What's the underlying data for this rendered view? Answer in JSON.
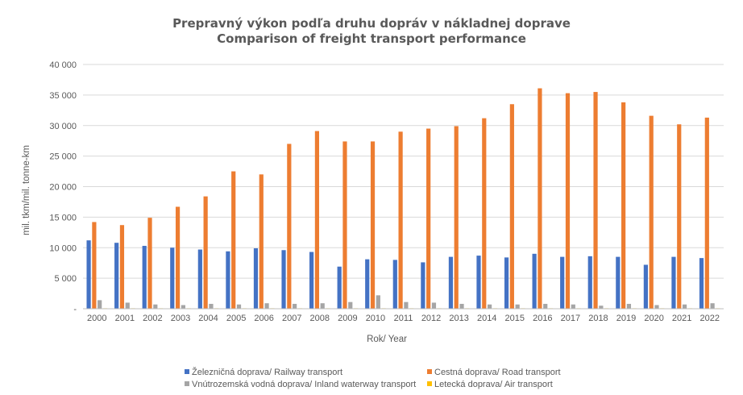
{
  "chart_data": {
    "type": "bar",
    "title": "Prepravný výkon podľa druhu dopráv v nákladnej doprave",
    "subtitle": "Comparison of freight transport performance",
    "xlabel": "Rok/ Year",
    "ylabel": "mil. tkm/mil. tonne-km",
    "ylim": [
      0,
      40000
    ],
    "yticks": [
      {
        "value": 0,
        "label": "-"
      },
      {
        "value": 5000,
        "label": "5 000"
      },
      {
        "value": 10000,
        "label": "10 000"
      },
      {
        "value": 15000,
        "label": "15 000"
      },
      {
        "value": 20000,
        "label": "20 000"
      },
      {
        "value": 25000,
        "label": "25 000"
      },
      {
        "value": 30000,
        "label": "30 000"
      },
      {
        "value": 35000,
        "label": "35 000"
      },
      {
        "value": 40000,
        "label": "40 000"
      }
    ],
    "grid": true,
    "legend_position": "bottom",
    "categories": [
      "2000",
      "2001",
      "2002",
      "2003",
      "2004",
      "2005",
      "2006",
      "2007",
      "2008",
      "2009",
      "2010",
      "2011",
      "2012",
      "2013",
      "2014",
      "2015",
      "2016",
      "2017",
      "2018",
      "2019",
      "2020",
      "2021",
      "2022"
    ],
    "series": [
      {
        "name": "Železničná doprava/ Railway transport",
        "color": "#4472C4",
        "values": [
          11200,
          10800,
          10300,
          10000,
          9700,
          9400,
          9900,
          9600,
          9300,
          6900,
          8100,
          8000,
          7600,
          8500,
          8700,
          8400,
          9000,
          8500,
          8600,
          8500,
          7200,
          8500,
          8300
        ]
      },
      {
        "name": "Cestná doprava/ Road transport",
        "color": "#ED7D31",
        "values": [
          14200,
          13700,
          14900,
          16700,
          18400,
          22500,
          22000,
          27000,
          29100,
          27400,
          27400,
          29000,
          29500,
          29900,
          31200,
          33500,
          36100,
          35300,
          35500,
          33800,
          31600,
          30200,
          31300
        ]
      },
      {
        "name": "Vnútrozemská vodná doprava/ Inland waterway transport",
        "color": "#A5A5A5",
        "values": [
          1400,
          1000,
          700,
          600,
          800,
          700,
          900,
          800,
          900,
          1100,
          2200,
          1100,
          1000,
          800,
          700,
          700,
          800,
          700,
          500,
          800,
          600,
          700,
          900
        ]
      },
      {
        "name": "Letecká doprava/ Air transport",
        "color": "#FFC000",
        "values": [
          30,
          30,
          30,
          30,
          30,
          30,
          30,
          30,
          30,
          30,
          30,
          30,
          30,
          30,
          30,
          30,
          30,
          30,
          30,
          30,
          30,
          30,
          30
        ]
      }
    ]
  }
}
